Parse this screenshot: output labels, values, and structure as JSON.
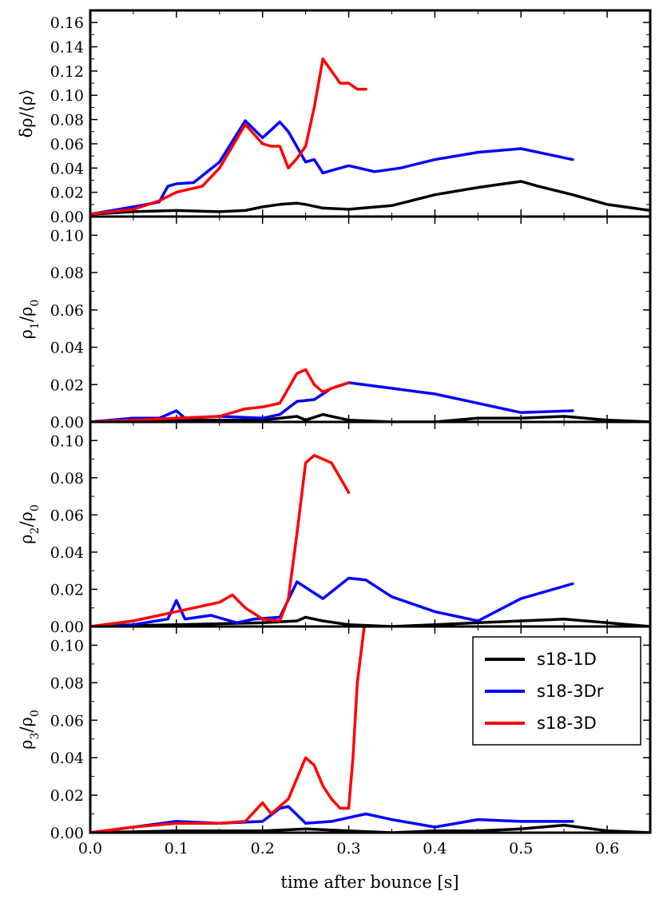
{
  "chart_data": {
    "type": "line",
    "xlabel": "time after bounce [s]",
    "xlim": [
      0.0,
      0.65
    ],
    "xticks": [
      "0.0",
      "0.1",
      "0.2",
      "0.3",
      "0.4",
      "0.5",
      "0.6"
    ],
    "legend": {
      "location": "upper-right of bottom panel",
      "entries": [
        "s18-1D",
        "s18-3Dr",
        "s18-3D"
      ]
    },
    "colors": {
      "s18-1D": "#000000",
      "s18-3Dr": "#0000ff",
      "s18-3D": "#ff0000"
    },
    "panels": [
      {
        "ylabel": "δρ/⟨ρ⟩",
        "ylim": [
          0.0,
          0.17
        ],
        "yticks": [
          "0.00",
          "0.02",
          "0.04",
          "0.06",
          "0.08",
          "0.10",
          "0.12",
          "0.14",
          "0.16"
        ],
        "series": [
          {
            "name": "s18-1D",
            "x": [
              0,
              0.05,
              0.1,
              0.15,
              0.18,
              0.2,
              0.22,
              0.24,
              0.25,
              0.27,
              0.3,
              0.35,
              0.4,
              0.45,
              0.5,
              0.52,
              0.56,
              0.6,
              0.65
            ],
            "y": [
              0.002,
              0.004,
              0.005,
              0.004,
              0.005,
              0.008,
              0.01,
              0.011,
              0.01,
              0.007,
              0.006,
              0.009,
              0.018,
              0.024,
              0.029,
              0.025,
              0.018,
              0.01,
              0.005
            ]
          },
          {
            "name": "s18-3Dr",
            "x": [
              0,
              0.05,
              0.08,
              0.09,
              0.1,
              0.12,
              0.15,
              0.18,
              0.2,
              0.22,
              0.23,
              0.25,
              0.26,
              0.27,
              0.29,
              0.3,
              0.33,
              0.36,
              0.4,
              0.45,
              0.5,
              0.52,
              0.56
            ],
            "y": [
              0.002,
              0.008,
              0.012,
              0.025,
              0.027,
              0.028,
              0.045,
              0.079,
              0.065,
              0.078,
              0.07,
              0.045,
              0.047,
              0.036,
              0.04,
              0.042,
              0.037,
              0.04,
              0.047,
              0.053,
              0.056,
              0.053,
              0.047
            ]
          },
          {
            "name": "s18-3D",
            "x": [
              0,
              0.05,
              0.08,
              0.1,
              0.13,
              0.15,
              0.18,
              0.2,
              0.21,
              0.22,
              0.23,
              0.24,
              0.25,
              0.26,
              0.27,
              0.28,
              0.29,
              0.3,
              0.31,
              0.32
            ],
            "y": [
              0.002,
              0.006,
              0.013,
              0.02,
              0.025,
              0.04,
              0.076,
              0.06,
              0.058,
              0.058,
              0.04,
              0.048,
              0.058,
              0.09,
              0.13,
              0.12,
              0.11,
              0.11,
              0.105,
              0.105
            ]
          }
        ]
      },
      {
        "ylabel": "ρ1/ρ0",
        "ylim": [
          0.0,
          0.11
        ],
        "yticks": [
          "0.00",
          "0.02",
          "0.04",
          "0.06",
          "0.08",
          "0.10"
        ],
        "series": [
          {
            "name": "s18-1D",
            "x": [
              0,
              0.1,
              0.2,
              0.24,
              0.25,
              0.27,
              0.3,
              0.35,
              0.4,
              0.45,
              0.5,
              0.55,
              0.6,
              0.65
            ],
            "y": [
              0.0,
              0.001,
              0.001,
              0.003,
              0.001,
              0.004,
              0.001,
              0.0,
              0.0,
              0.002,
              0.002,
              0.003,
              0.001,
              0.0
            ]
          },
          {
            "name": "s18-3Dr",
            "x": [
              0,
              0.05,
              0.08,
              0.1,
              0.11,
              0.15,
              0.2,
              0.22,
              0.24,
              0.26,
              0.28,
              0.3,
              0.35,
              0.4,
              0.45,
              0.5,
              0.56
            ],
            "y": [
              0.0,
              0.002,
              0.002,
              0.006,
              0.002,
              0.003,
              0.002,
              0.004,
              0.011,
              0.012,
              0.018,
              0.021,
              0.018,
              0.015,
              0.01,
              0.005,
              0.006
            ]
          },
          {
            "name": "s18-3D",
            "x": [
              0,
              0.05,
              0.1,
              0.15,
              0.18,
              0.2,
              0.22,
              0.24,
              0.25,
              0.26,
              0.27,
              0.28,
              0.3
            ],
            "y": [
              0.0,
              0.001,
              0.002,
              0.003,
              0.007,
              0.008,
              0.01,
              0.026,
              0.028,
              0.02,
              0.016,
              0.018,
              0.021
            ]
          }
        ]
      },
      {
        "ylabel": "ρ2/ρ0",
        "ylim": [
          0.0,
          0.11
        ],
        "yticks": [
          "0.00",
          "0.02",
          "0.04",
          "0.06",
          "0.08",
          "0.10"
        ],
        "series": [
          {
            "name": "s18-1D",
            "x": [
              0,
              0.1,
              0.2,
              0.24,
              0.25,
              0.27,
              0.3,
              0.35,
              0.4,
              0.45,
              0.5,
              0.55,
              0.6,
              0.65
            ],
            "y": [
              0.0,
              0.001,
              0.002,
              0.003,
              0.005,
              0.003,
              0.001,
              0.0,
              0.001,
              0.002,
              0.003,
              0.004,
              0.002,
              0.0
            ]
          },
          {
            "name": "s18-3Dr",
            "x": [
              0,
              0.05,
              0.09,
              0.1,
              0.11,
              0.14,
              0.17,
              0.19,
              0.22,
              0.24,
              0.27,
              0.3,
              0.32,
              0.35,
              0.4,
              0.45,
              0.5,
              0.56
            ],
            "y": [
              0.0,
              0.001,
              0.004,
              0.014,
              0.004,
              0.006,
              0.002,
              0.004,
              0.005,
              0.024,
              0.015,
              0.026,
              0.025,
              0.016,
              0.008,
              0.003,
              0.015,
              0.023
            ]
          },
          {
            "name": "s18-3D",
            "x": [
              0,
              0.05,
              0.1,
              0.15,
              0.165,
              0.18,
              0.2,
              0.22,
              0.23,
              0.24,
              0.25,
              0.26,
              0.27,
              0.28,
              0.29,
              0.3
            ],
            "y": [
              0.0,
              0.003,
              0.008,
              0.013,
              0.017,
              0.01,
              0.004,
              0.003,
              0.015,
              0.05,
              0.088,
              0.092,
              0.09,
              0.088,
              0.08,
              0.072
            ]
          }
        ]
      },
      {
        "ylabel": "ρ3/ρ0",
        "ylim": [
          0.0,
          0.11
        ],
        "yticks": [
          "0.00",
          "0.02",
          "0.04",
          "0.06",
          "0.08",
          "0.10"
        ],
        "series": [
          {
            "name": "s18-1D",
            "x": [
              0,
              0.1,
              0.2,
              0.25,
              0.3,
              0.35,
              0.4,
              0.45,
              0.5,
              0.55,
              0.6,
              0.65
            ],
            "y": [
              0.0,
              0.001,
              0.001,
              0.002,
              0.001,
              0.0,
              0.001,
              0.001,
              0.002,
              0.004,
              0.001,
              0.0
            ]
          },
          {
            "name": "s18-3Dr",
            "x": [
              0,
              0.05,
              0.1,
              0.15,
              0.2,
              0.22,
              0.23,
              0.25,
              0.28,
              0.3,
              0.32,
              0.35,
              0.4,
              0.45,
              0.5,
              0.56
            ],
            "y": [
              0.0,
              0.003,
              0.006,
              0.005,
              0.006,
              0.013,
              0.014,
              0.005,
              0.006,
              0.008,
              0.01,
              0.007,
              0.003,
              0.007,
              0.006,
              0.006
            ]
          },
          {
            "name": "s18-3D",
            "x": [
              0,
              0.05,
              0.1,
              0.15,
              0.18,
              0.2,
              0.21,
              0.23,
              0.25,
              0.26,
              0.27,
              0.28,
              0.29,
              0.3,
              0.305,
              0.31,
              0.318
            ],
            "y": [
              0.0,
              0.003,
              0.005,
              0.005,
              0.006,
              0.016,
              0.01,
              0.018,
              0.04,
              0.036,
              0.025,
              0.018,
              0.013,
              0.013,
              0.04,
              0.08,
              0.11
            ]
          }
        ]
      }
    ]
  }
}
